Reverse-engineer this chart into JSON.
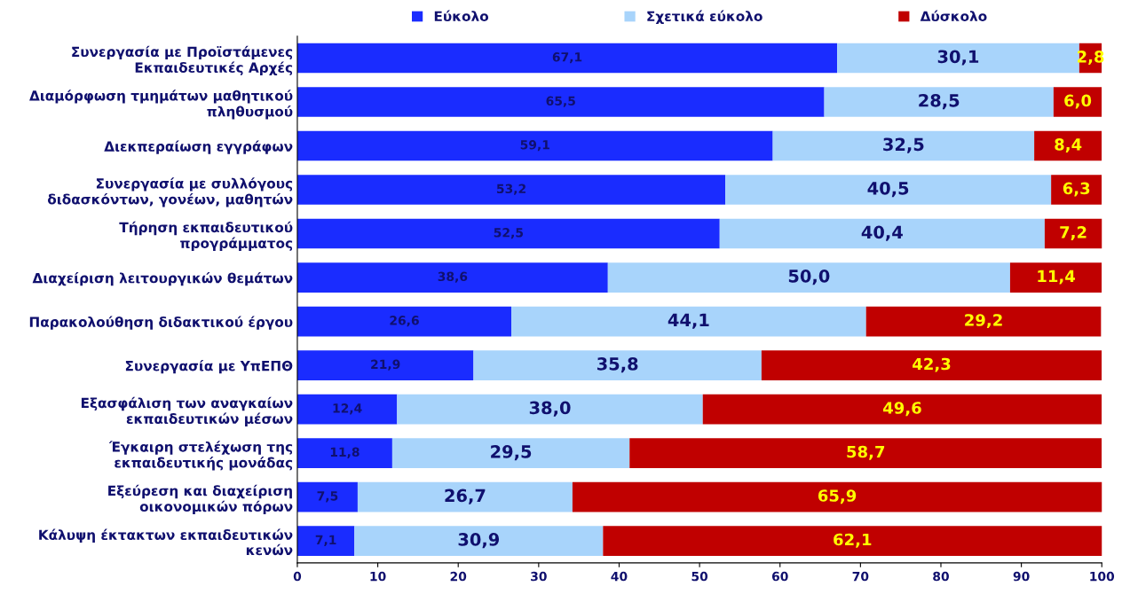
{
  "chart_data": {
    "type": "bar",
    "orientation": "horizontal",
    "stacked": true,
    "legend": "top",
    "grid": false,
    "categories": [
      "Συνεργασία με Προϊστάμενες\nΕκπαιδευτικές Αρχές",
      "Διαμόρφωση τμημάτων μαθητικού\nπληθυσμού",
      "Διεκπεραίωση εγγράφων",
      "Συνεργασία με συλλόγους\nδιδασκόντων, γονέων, μαθητών",
      "Τήρηση εκπαιδευτικού\nπρογράμματος",
      "Διαχείριση λειτουργικών θεμάτων",
      "Παρακολούθηση διδακτικού έργου",
      "Συνεργασία με ΥπΕΠΘ",
      "Εξασφάλιση των αναγκαίων\nεκπαιδευτικών μέσων",
      "Έγκαιρη στελέχωση της\nεκπαιδευτικής μονάδας",
      "Εξεύρεση και διαχείριση\nοικονομικών πόρων",
      "Κάλυψη έκτακτων εκπαιδευτικών\nκενών"
    ],
    "xlim": [
      0,
      100
    ],
    "xticks": [
      0,
      10,
      20,
      30,
      40,
      50,
      60,
      70,
      80,
      90,
      100
    ],
    "series": [
      {
        "name": "Εύκολο",
        "color": "#1a2cff",
        "values": [
          67.1,
          65.5,
          59.1,
          53.2,
          52.5,
          38.6,
          26.6,
          21.9,
          12.4,
          11.8,
          7.5,
          7.1
        ],
        "value_labels": [
          "67,1",
          "65,5",
          "59,1",
          "53,2",
          "52,5",
          "38,6",
          "26,6",
          "21,9",
          "12,4",
          "11,8",
          "7,5",
          "7,1"
        ]
      },
      {
        "name": "Σχετικά εύκολο",
        "color": "#a8d4fb",
        "values": [
          30.1,
          28.5,
          32.5,
          40.5,
          40.4,
          50.0,
          44.1,
          35.8,
          38.0,
          29.5,
          26.7,
          30.9
        ],
        "value_labels": [
          "30,1",
          "28,5",
          "32,5",
          "40,5",
          "40,4",
          "50,0",
          "44,1",
          "35,8",
          "38,0",
          "29,5",
          "26,7",
          "30,9"
        ]
      },
      {
        "name": "Δύσκολο",
        "color": "#c00000",
        "values": [
          2.8,
          6.0,
          8.4,
          6.3,
          7.2,
          11.4,
          29.2,
          42.3,
          49.6,
          58.7,
          65.9,
          62.1
        ],
        "value_labels": [
          "2,8",
          "6,0",
          "8,4",
          "6,3",
          "7,2",
          "11,4",
          "29,2",
          "42,3",
          "49,6",
          "58,7",
          "65,9",
          "62,1"
        ]
      }
    ]
  }
}
